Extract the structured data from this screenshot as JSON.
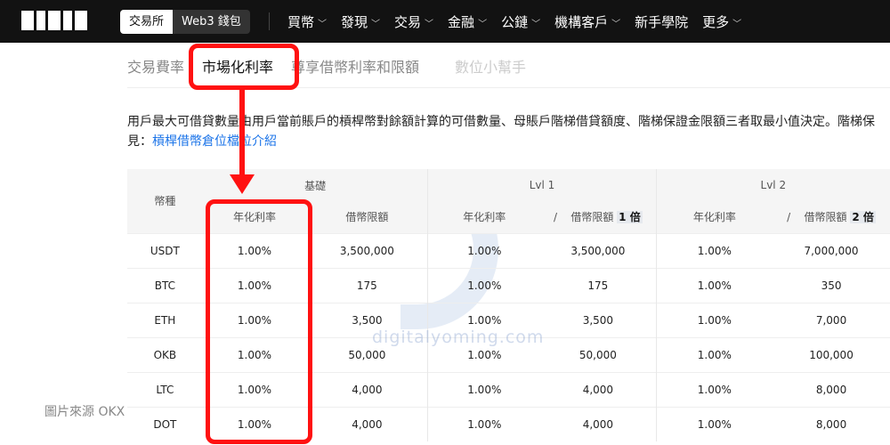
{
  "nav": {
    "logo": "OKX",
    "seg": [
      "交易所",
      "Web3 錢包"
    ],
    "menu": [
      {
        "label": "買幣",
        "chev": true
      },
      {
        "label": "發現",
        "chev": true
      },
      {
        "label": "交易",
        "chev": true
      },
      {
        "label": "金融",
        "chev": true
      },
      {
        "label": "公鏈",
        "chev": true
      },
      {
        "label": "機構客戶",
        "chev": true
      },
      {
        "label": "新手學院",
        "chev": false
      },
      {
        "label": "更多",
        "chev": true
      }
    ]
  },
  "tabs": [
    "交易費率",
    "市場化利率",
    "尊享借幣利率和限額",
    "數位小幫手"
  ],
  "para": {
    "text": "用戶最大可借貸數量由用戶當前賬戶的槓桿幣對餘額計算的可借數量、母賬戶階梯借貸額度、階梯保證金限額三者取最小值決定。階梯保",
    "text2": "見：",
    "link": "槓桿借幣倉位檔位介紹"
  },
  "table": {
    "coin_header": "幣種",
    "groups": [
      "基礎",
      "Lvl 1",
      "Lvl 2"
    ],
    "sub": {
      "rate": "年化利率",
      "limit": "借幣限額",
      "sep": "/",
      "m1": "1 倍",
      "m2": "2 倍"
    },
    "rows": [
      [
        "USDT",
        "1.00%",
        "3,500,000",
        "1.00%",
        "3,500,000",
        "1.00%",
        "7,000,000"
      ],
      [
        "BTC",
        "1.00%",
        "175",
        "1.00%",
        "175",
        "1.00%",
        "350"
      ],
      [
        "ETH",
        "1.00%",
        "3,500",
        "1.00%",
        "3,500",
        "1.00%",
        "7,000"
      ],
      [
        "OKB",
        "1.00%",
        "50,000",
        "1.00%",
        "50,000",
        "1.00%",
        "100,000"
      ],
      [
        "LTC",
        "1.00%",
        "4,000",
        "1.00%",
        "4,000",
        "1.00%",
        "8,000"
      ],
      [
        "DOT",
        "1.00%",
        "4,000",
        "1.00%",
        "4,000",
        "1.00%",
        "8,000"
      ]
    ]
  },
  "watermark": "digitalyoming.com",
  "caption": "圖片來源 OKX",
  "colors": {
    "annotation": "#ff1111",
    "link": "#1a73e8",
    "nav": "#121212"
  }
}
